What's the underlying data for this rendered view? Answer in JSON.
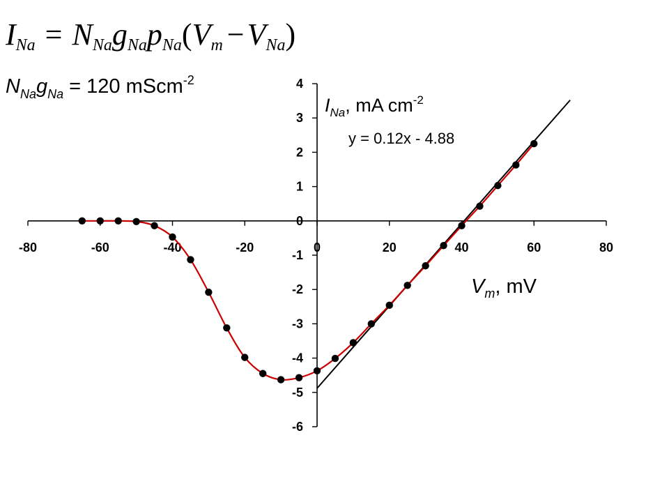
{
  "equation": {
    "lhs": "I",
    "lhs_sub": "Na",
    "eq": "=",
    "n": "N",
    "n_sub": "Na",
    "g": "g",
    "g_sub": "Na",
    "p": "p",
    "p_sub": "Na",
    "open": "(",
    "vm": "V",
    "vm_sub": "m",
    "minus": "−",
    "vna": "V",
    "vna_sub": "Na",
    "close": ")"
  },
  "conductance": {
    "n": "N",
    "n_sub": "Na",
    "g": "g",
    "g_sub": "Na",
    "text": " = 120 mScm",
    "sup": "-2"
  },
  "chart_data": {
    "type": "scatter",
    "xlabel": {
      "main": "V",
      "sub": "m",
      "rest": ", mV"
    },
    "ylabel": {
      "main": "I",
      "sub": "Na",
      "rest": ", mA cm",
      "sup": "-2"
    },
    "xlim": [
      -80,
      80
    ],
    "ylim": [
      -6,
      4
    ],
    "x_ticks": [
      -80,
      -60,
      -40,
      -20,
      0,
      20,
      40,
      60,
      80
    ],
    "y_ticks": [
      4,
      3,
      2,
      1,
      0,
      -1,
      -2,
      -3,
      -4,
      -5,
      -6
    ],
    "grid": false,
    "series": [
      {
        "style": "markers+curve",
        "marker_color": "#000000",
        "line_color": "#cc0000",
        "x": [
          -65,
          -60,
          -55,
          -50,
          -45,
          -40,
          -35,
          -30,
          -25,
          -20,
          -15,
          -10,
          -5,
          0,
          5,
          10,
          15,
          20,
          25,
          30,
          35,
          40,
          45,
          50,
          55,
          60
        ],
        "y": [
          0.0,
          0.0,
          0.0,
          -0.02,
          -0.14,
          -0.47,
          -1.13,
          -2.08,
          -3.12,
          -3.98,
          -4.45,
          -4.63,
          -4.57,
          -4.37,
          -4.01,
          -3.55,
          -3.0,
          -2.46,
          -1.88,
          -1.31,
          -0.72,
          -0.14,
          0.43,
          1.03,
          1.63,
          2.25
        ]
      },
      {
        "style": "line",
        "line_color": "#000000",
        "x": [
          0,
          70
        ],
        "y": [
          -4.88,
          3.52
        ]
      }
    ],
    "trendline_label": "y = 0.12x - 4.88"
  }
}
